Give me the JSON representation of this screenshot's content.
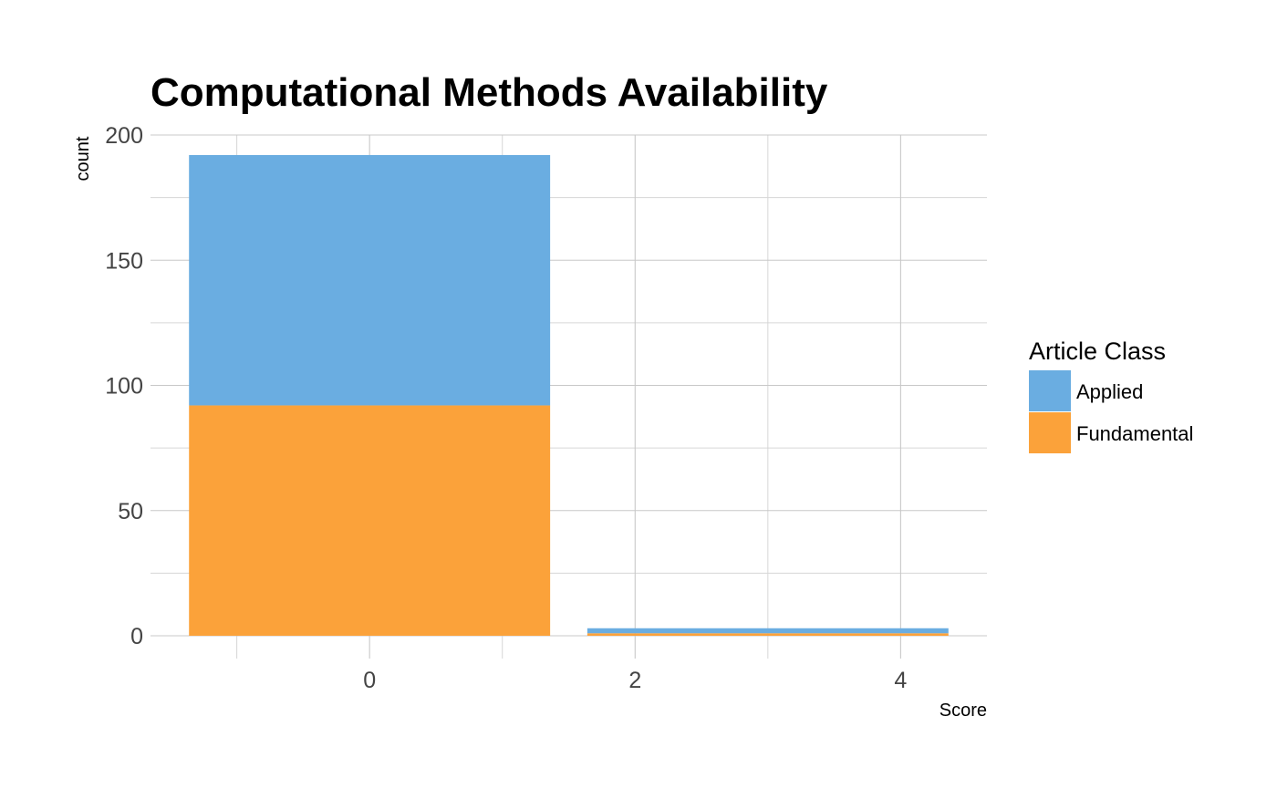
{
  "chart_data": {
    "type": "bar",
    "stacked": true,
    "title": "Computational Methods Availability",
    "xlabel": "Score",
    "ylabel": "count",
    "x": [
      0,
      3
    ],
    "bar_width": 2.72,
    "xlim": [
      -1.65,
      4.65
    ],
    "ylim": [
      0,
      200
    ],
    "xticks": [
      0,
      2,
      4
    ],
    "yticks": [
      0,
      50,
      100,
      150,
      200
    ],
    "grid": true,
    "legend": {
      "title": "Article Class",
      "position": "right"
    },
    "series": [
      {
        "name": "Fundamental",
        "color": "#FBA23A",
        "values": [
          92,
          1
        ]
      },
      {
        "name": "Applied",
        "color": "#6AADE1",
        "values": [
          100,
          2
        ]
      }
    ]
  }
}
